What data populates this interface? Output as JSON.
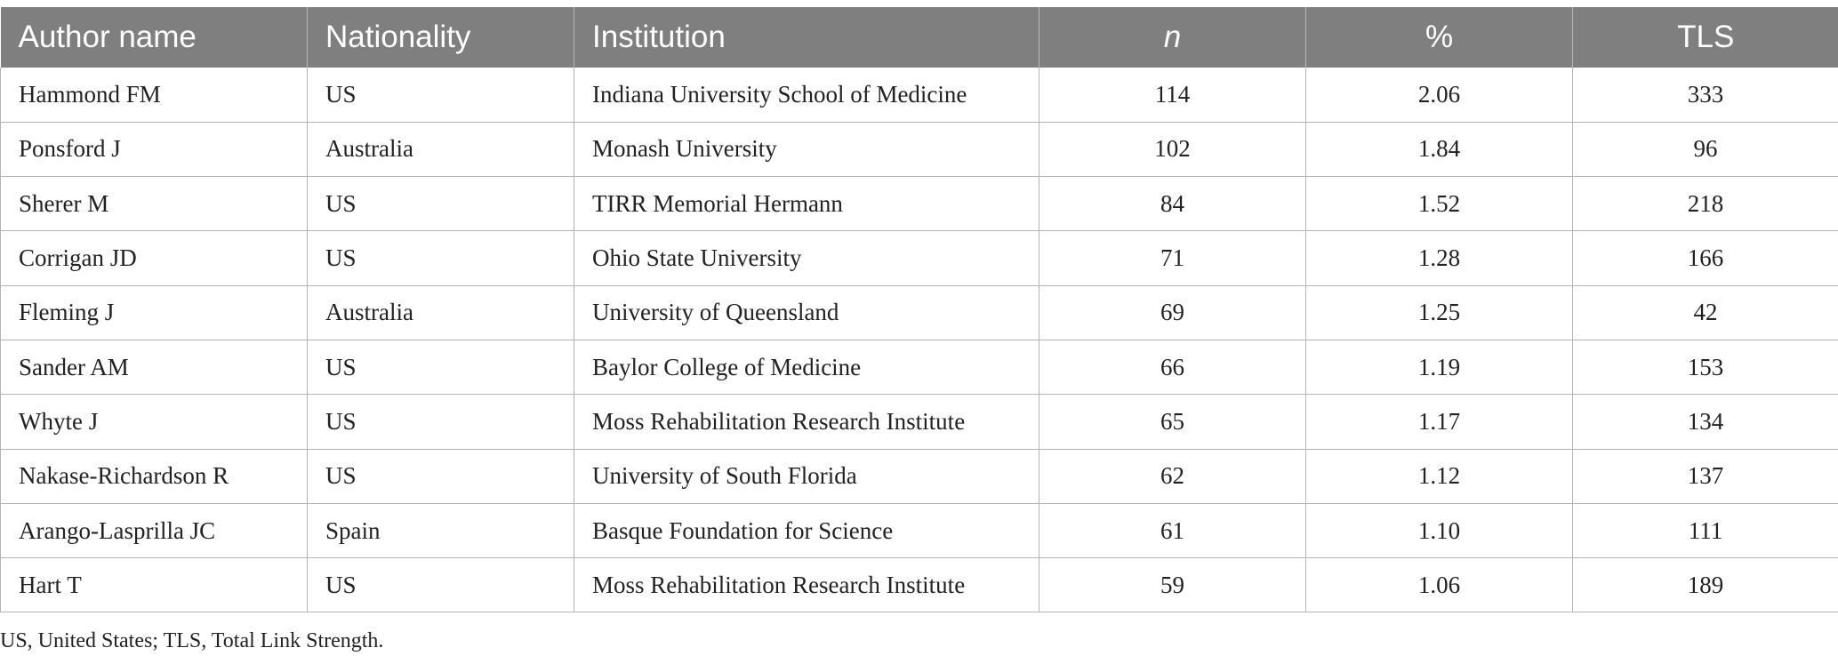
{
  "table": {
    "headers": [
      "Author name",
      "Nationality",
      "Institution",
      "n",
      "%",
      "TLS"
    ],
    "rows": [
      {
        "author": "Hammond FM",
        "nationality": "US",
        "institution": "Indiana University School of Medicine",
        "n": "114",
        "pct": "2.06",
        "tls": "333"
      },
      {
        "author": "Ponsford J",
        "nationality": "Australia",
        "institution": "Monash University",
        "n": "102",
        "pct": "1.84",
        "tls": "96"
      },
      {
        "author": "Sherer M",
        "nationality": "US",
        "institution": "TIRR Memorial Hermann",
        "n": "84",
        "pct": "1.52",
        "tls": "218"
      },
      {
        "author": "Corrigan JD",
        "nationality": "US",
        "institution": "Ohio State University",
        "n": "71",
        "pct": "1.28",
        "tls": "166"
      },
      {
        "author": "Fleming J",
        "nationality": "Australia",
        "institution": "University of Queensland",
        "n": "69",
        "pct": "1.25",
        "tls": "42"
      },
      {
        "author": "Sander AM",
        "nationality": "US",
        "institution": "Baylor College of Medicine",
        "n": "66",
        "pct": "1.19",
        "tls": "153"
      },
      {
        "author": "Whyte J",
        "nationality": "US",
        "institution": "Moss Rehabilitation Research Institute",
        "n": "65",
        "pct": "1.17",
        "tls": "134"
      },
      {
        "author": "Nakase-Richardson R",
        "nationality": "US",
        "institution": "University of South Florida",
        "n": "62",
        "pct": "1.12",
        "tls": "137"
      },
      {
        "author": "Arango-Lasprilla JC",
        "nationality": "Spain",
        "institution": "Basque Foundation for Science",
        "n": "61",
        "pct": "1.10",
        "tls": "111"
      },
      {
        "author": "Hart T",
        "nationality": "US",
        "institution": "Moss Rehabilitation Research Institute",
        "n": "59",
        "pct": "1.06",
        "tls": "189"
      }
    ]
  },
  "footnote": "US, United States; TLS, Total Link Strength."
}
